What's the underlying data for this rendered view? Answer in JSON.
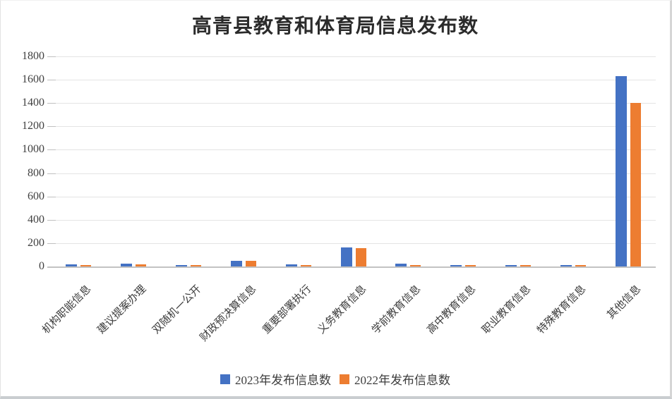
{
  "title": "高青县教育和体育局信息发布数",
  "chart_data": {
    "type": "bar",
    "title": "高青县教育和体育局信息发布数",
    "categories": [
      "机构职能信息",
      "建议提案办理",
      "双随机一公开",
      "财政预决算信息",
      "重要部署执行",
      "义务教育信息",
      "学前教育信息",
      "高中教育信息",
      "职业教育信息",
      "特殊教育信息",
      "其他信息"
    ],
    "series": [
      {
        "name": "2023年发布信息数",
        "color": "#4472C4",
        "values": [
          20,
          22,
          12,
          50,
          20,
          165,
          25,
          15,
          15,
          12,
          1630
        ]
      },
      {
        "name": "2022年发布信息数",
        "color": "#ED7D31",
        "values": [
          10,
          18,
          10,
          48,
          15,
          160,
          12,
          12,
          12,
          12,
          1400
        ]
      }
    ],
    "xlabel": "",
    "ylabel": "",
    "ylim": [
      0,
      1800
    ],
    "ytick_step": 200,
    "grid": "horizontal",
    "legend_position": "bottom"
  },
  "colors": {
    "series_2023": "#4472C4",
    "series_2022": "#ED7D31",
    "axis_text": "#404040",
    "gridline": "#e4e4e4",
    "axis_line": "#c3c3c3",
    "background": "#ffffff"
  }
}
